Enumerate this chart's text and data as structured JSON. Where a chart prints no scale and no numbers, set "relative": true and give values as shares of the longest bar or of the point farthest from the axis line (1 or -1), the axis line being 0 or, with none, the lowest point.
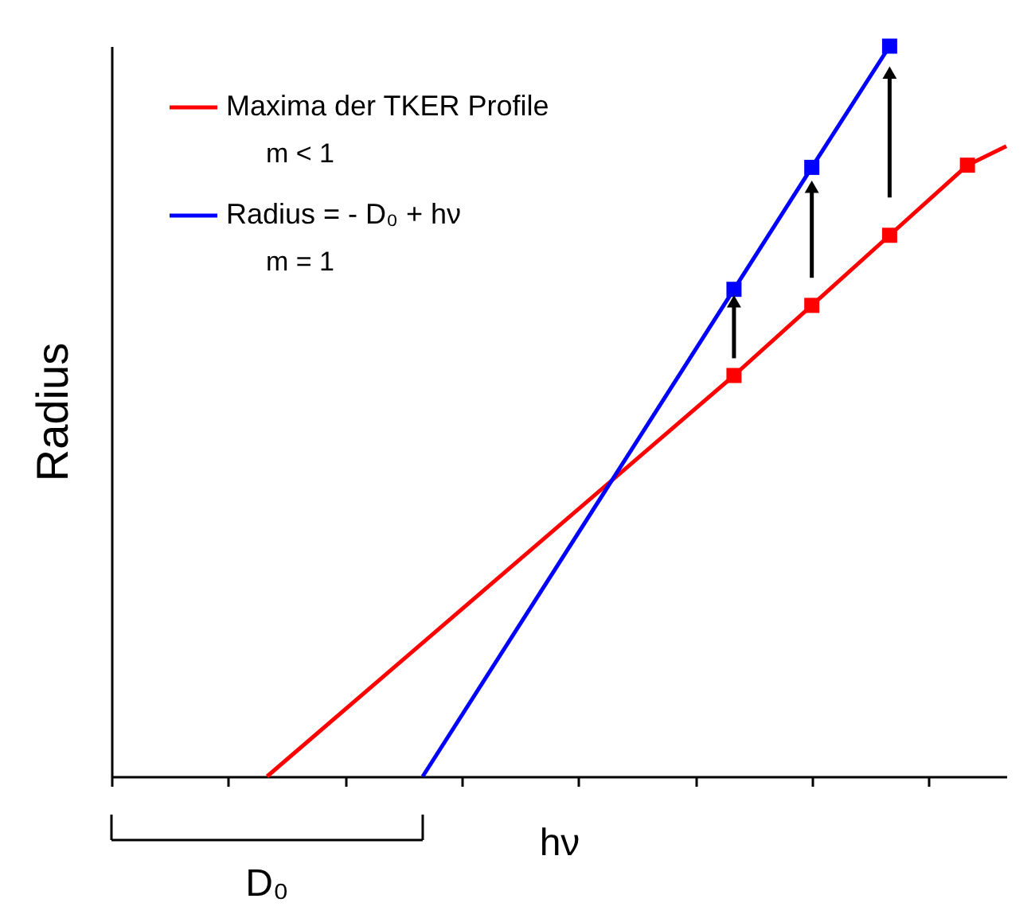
{
  "chart_data": {
    "type": "line",
    "relative": true,
    "xlabel": "hν",
    "ylabel": "Radius",
    "categories": [
      null,
      null,
      null,
      null,
      null,
      null,
      null,
      null,
      null,
      null,
      null,
      null,
      null,
      null,
      null,
      null,
      null,
      null,
      null,
      null,
      null,
      null,
      null,
      null
    ],
    "legend": "top left",
    "annotations": [
      "m < 1",
      "m = 1",
      "D₀"
    ],
    "series": [
      {
        "color": "#ff0000",
        "marker": "none",
        "values": [
          null,
          null,
          null,
          null,
          0,
          null,
          null,
          null,
          null,
          null,
          null,
          null,
          null,
          null,
          null,
          null,
          0.549,
          null,
          null,
          null,
          null,
          null,
          null,
          null
        ]
      },
      {
        "color": "#ff0000",
        "marker": "none",
        "values": [
          null,
          null,
          null,
          null,
          null,
          null,
          null,
          null,
          null,
          null,
          null,
          null,
          null,
          null,
          null,
          null,
          null,
          null,
          null,
          null,
          null,
          null,
          0.837,
          0.863
        ]
      },
      {
        "color": "#0000ff",
        "marker": "none",
        "values": [
          null,
          null,
          null,
          null,
          null,
          null,
          null,
          null,
          0,
          null,
          null,
          null,
          null,
          null,
          null,
          null,
          0.667,
          null,
          null,
          null,
          null,
          null,
          null,
          null
        ]
      },
      {
        "name": "Maxima der TKER Profile",
        "color": "#ff0000",
        "marker": "square",
        "values": [
          null,
          null,
          null,
          null,
          null,
          null,
          null,
          null,
          null,
          null,
          null,
          null,
          null,
          null,
          null,
          null,
          0.549,
          null,
          0.645,
          null,
          0.741,
          null,
          0.837,
          null
        ]
      },
      {
        "name": "Radius = - D₀ + hν",
        "color": "#0000ff",
        "marker": "square",
        "values": [
          null,
          null,
          null,
          null,
          null,
          null,
          null,
          null,
          null,
          null,
          null,
          null,
          null,
          null,
          null,
          null,
          0.667,
          null,
          0.834,
          null,
          1,
          null,
          null,
          null
        ]
      }
    ]
  }
}
